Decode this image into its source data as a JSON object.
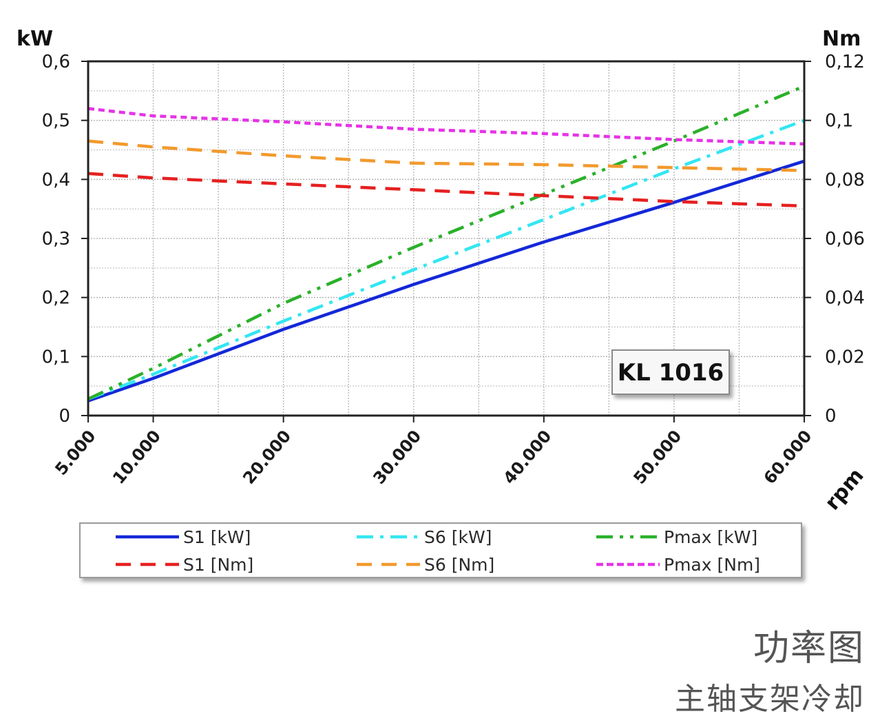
{
  "chart_data": {
    "type": "line",
    "x": [
      5000,
      10000,
      20000,
      30000,
      40000,
      50000,
      60000
    ],
    "x_tick_labels": [
      "5.000",
      "10.000",
      "20.000",
      "30.000",
      "40.000",
      "50.000",
      "60.000"
    ],
    "xlabel": "rpm",
    "xlim": [
      5000,
      60000
    ],
    "ylabel_left": "kW",
    "ylim_left": [
      0,
      0.6
    ],
    "y_ticks_left": [
      "0",
      "0,1",
      "0,2",
      "0,3",
      "0,4",
      "0,5",
      "0,6"
    ],
    "ylabel_right": "Nm",
    "ylim_right": [
      0,
      0.12
    ],
    "y_ticks_right": [
      "0",
      "0,02",
      "0,04",
      "0,06",
      "0,08",
      "0,1",
      "0,12"
    ],
    "grid": true,
    "annotation": "KL 1016",
    "legend_placement": "bottom",
    "series": [
      {
        "name": "S1 [kW]",
        "axis": "left",
        "color": "#1428d8",
        "style": "solid",
        "values": [
          0.025,
          0.063,
          0.146,
          0.222,
          0.294,
          0.361,
          0.431
        ]
      },
      {
        "name": "S6 [kW]",
        "axis": "left",
        "color": "#33e6f2",
        "style": "dashdot",
        "values": [
          0.028,
          0.07,
          0.16,
          0.247,
          0.332,
          0.418,
          0.5
        ]
      },
      {
        "name": "Pmax [kW]",
        "axis": "left",
        "color": "#2ab12a",
        "style": "dashdotdot",
        "values": [
          0.028,
          0.08,
          0.19,
          0.285,
          0.375,
          0.465,
          0.558
        ]
      },
      {
        "name": "S1 [Nm]",
        "axis": "right",
        "color": "#e62020",
        "style": "dashed",
        "values": [
          0.082,
          0.0805,
          0.0785,
          0.0765,
          0.0745,
          0.0725,
          0.071
        ]
      },
      {
        "name": "S6 [Nm]",
        "axis": "right",
        "color": "#f29a2e",
        "style": "dashed",
        "values": [
          0.093,
          0.091,
          0.088,
          0.0855,
          0.085,
          0.084,
          0.083
        ]
      },
      {
        "name": "Pmax [Nm]",
        "axis": "right",
        "color": "#e633e6",
        "style": "dotted",
        "values": [
          0.104,
          0.1015,
          0.0995,
          0.097,
          0.0955,
          0.0935,
          0.092
        ]
      }
    ]
  },
  "caption": {
    "title": "功率图",
    "subtitle": "主轴支架冷却"
  }
}
